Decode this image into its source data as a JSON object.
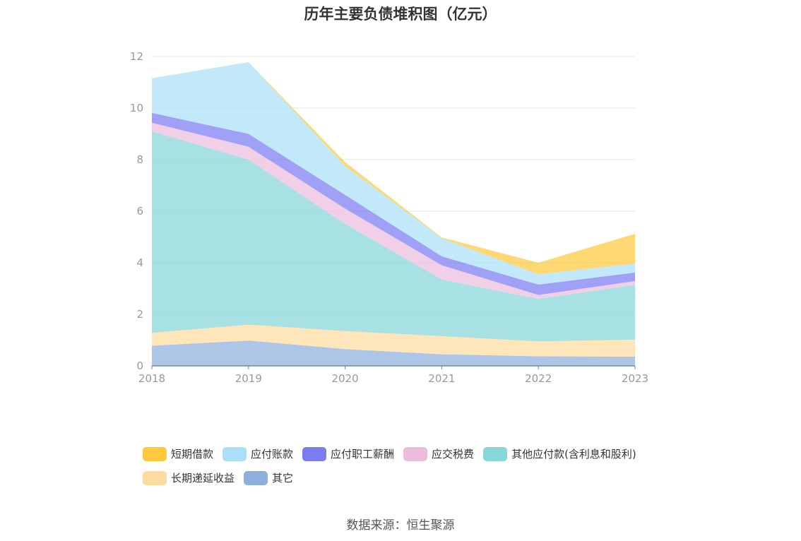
{
  "title": "历年主要负债堆积图（亿元）",
  "source": "数据来源：恒生聚源",
  "chart_data": {
    "type": "area",
    "stacked": true,
    "title": "历年主要负债堆积图（亿元）",
    "x": [
      "2018",
      "2019",
      "2020",
      "2021",
      "2022",
      "2023"
    ],
    "ylim": [
      0,
      12
    ],
    "yticks": [
      0,
      2,
      4,
      6,
      8,
      10,
      12
    ],
    "grid": true,
    "legend_position": "bottom",
    "series": [
      {
        "name": "其它",
        "color": "#8eaedc",
        "values": [
          0.78,
          0.98,
          0.65,
          0.45,
          0.37,
          0.36
        ]
      },
      {
        "name": "长期递延收益",
        "color": "#fedba0",
        "values": [
          0.5,
          0.62,
          0.7,
          0.7,
          0.58,
          0.66
        ]
      },
      {
        "name": "其他应付款(含利息和股利)",
        "color": "#87d6d8",
        "values": [
          7.82,
          6.4,
          4.15,
          2.2,
          1.65,
          2.12
        ]
      },
      {
        "name": "应交税费",
        "color": "#ecbcdc",
        "values": [
          0.33,
          0.5,
          0.6,
          0.55,
          0.15,
          0.15
        ]
      },
      {
        "name": "应付职工薪酬",
        "color": "#7b7bf2",
        "values": [
          0.38,
          0.5,
          0.53,
          0.35,
          0.4,
          0.33
        ]
      },
      {
        "name": "应付账款",
        "color": "#a9e0f8",
        "values": [
          1.35,
          2.78,
          1.12,
          0.7,
          0.4,
          0.35
        ]
      },
      {
        "name": "短期借款",
        "color": "#fec93d",
        "values": [
          0,
          0,
          0.15,
          0.03,
          0.45,
          1.15
        ]
      }
    ]
  },
  "legend_order": [
    "短期借款",
    "应付账款",
    "应付职工薪酬",
    "应交税费",
    "其他应付款(含利息和股利)",
    "长期递延收益",
    "其它"
  ]
}
